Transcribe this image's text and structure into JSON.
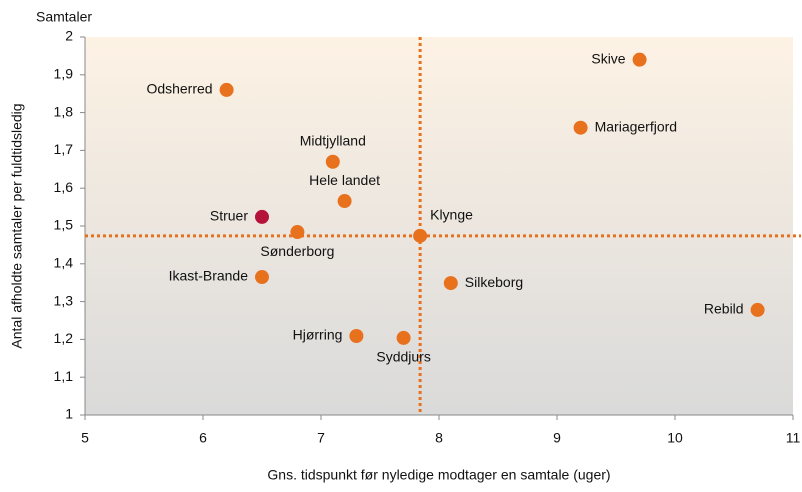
{
  "chart_data": {
    "type": "scatter",
    "y_unit_label": "Samtaler",
    "x_label": "Gns. tidspunkt før nyledige modtager en samtale (uger)",
    "y_label": "Antal afholdte samtaler per fuldtidsledig",
    "point_labels": [
      "Skive",
      "Odsherred",
      "Mariagerfjord",
      "Midtjylland",
      "Hele landet",
      "Struer",
      "Sønderborg",
      "Klynge",
      "Ikast-Brande",
      "Silkeborg",
      "Rebild",
      "Hjørring",
      "Syddjurs"
    ],
    "x": [
      9.7,
      6.2,
      9.2,
      7.1,
      7.2,
      6.5,
      6.8,
      7.84,
      6.5,
      8.1,
      10.7,
      7.3,
      7.7
    ],
    "values": [
      1.94,
      1.86,
      1.76,
      1.67,
      1.566,
      1.524,
      1.484,
      1.474,
      1.365,
      1.349,
      1.278,
      1.209,
      1.204
    ],
    "point_colors": [
      "#e8711e",
      "#e8711e",
      "#e8711e",
      "#e8711e",
      "#e8711e",
      "#b5123a",
      "#e8711e",
      "#e8711e",
      "#e8711e",
      "#e8711e",
      "#e8711e",
      "#e8711e",
      "#e8711e"
    ],
    "reference_x": 7.84,
    "reference_y": 1.474,
    "reference_color": "#e8711e",
    "xlim": [
      5,
      11
    ],
    "xticks": [
      5,
      6,
      7,
      8,
      9,
      10,
      11
    ],
    "ylim": [
      1,
      2
    ],
    "yticks": [
      1,
      {
        "value": 1.1,
        "label": "1,1"
      },
      {
        "value": 1.2,
        "label": "1,2"
      },
      {
        "value": 1.3,
        "label": "1,3"
      },
      {
        "value": 1.4,
        "label": "1,4"
      },
      {
        "value": 1.5,
        "label": "1,5"
      },
      {
        "value": 1.6,
        "label": "1,6"
      },
      {
        "value": 1.7,
        "label": "1,7"
      },
      {
        "value": 1.8,
        "label": "1,8"
      },
      {
        "value": 1.9,
        "label": "1,9"
      },
      2
    ]
  }
}
